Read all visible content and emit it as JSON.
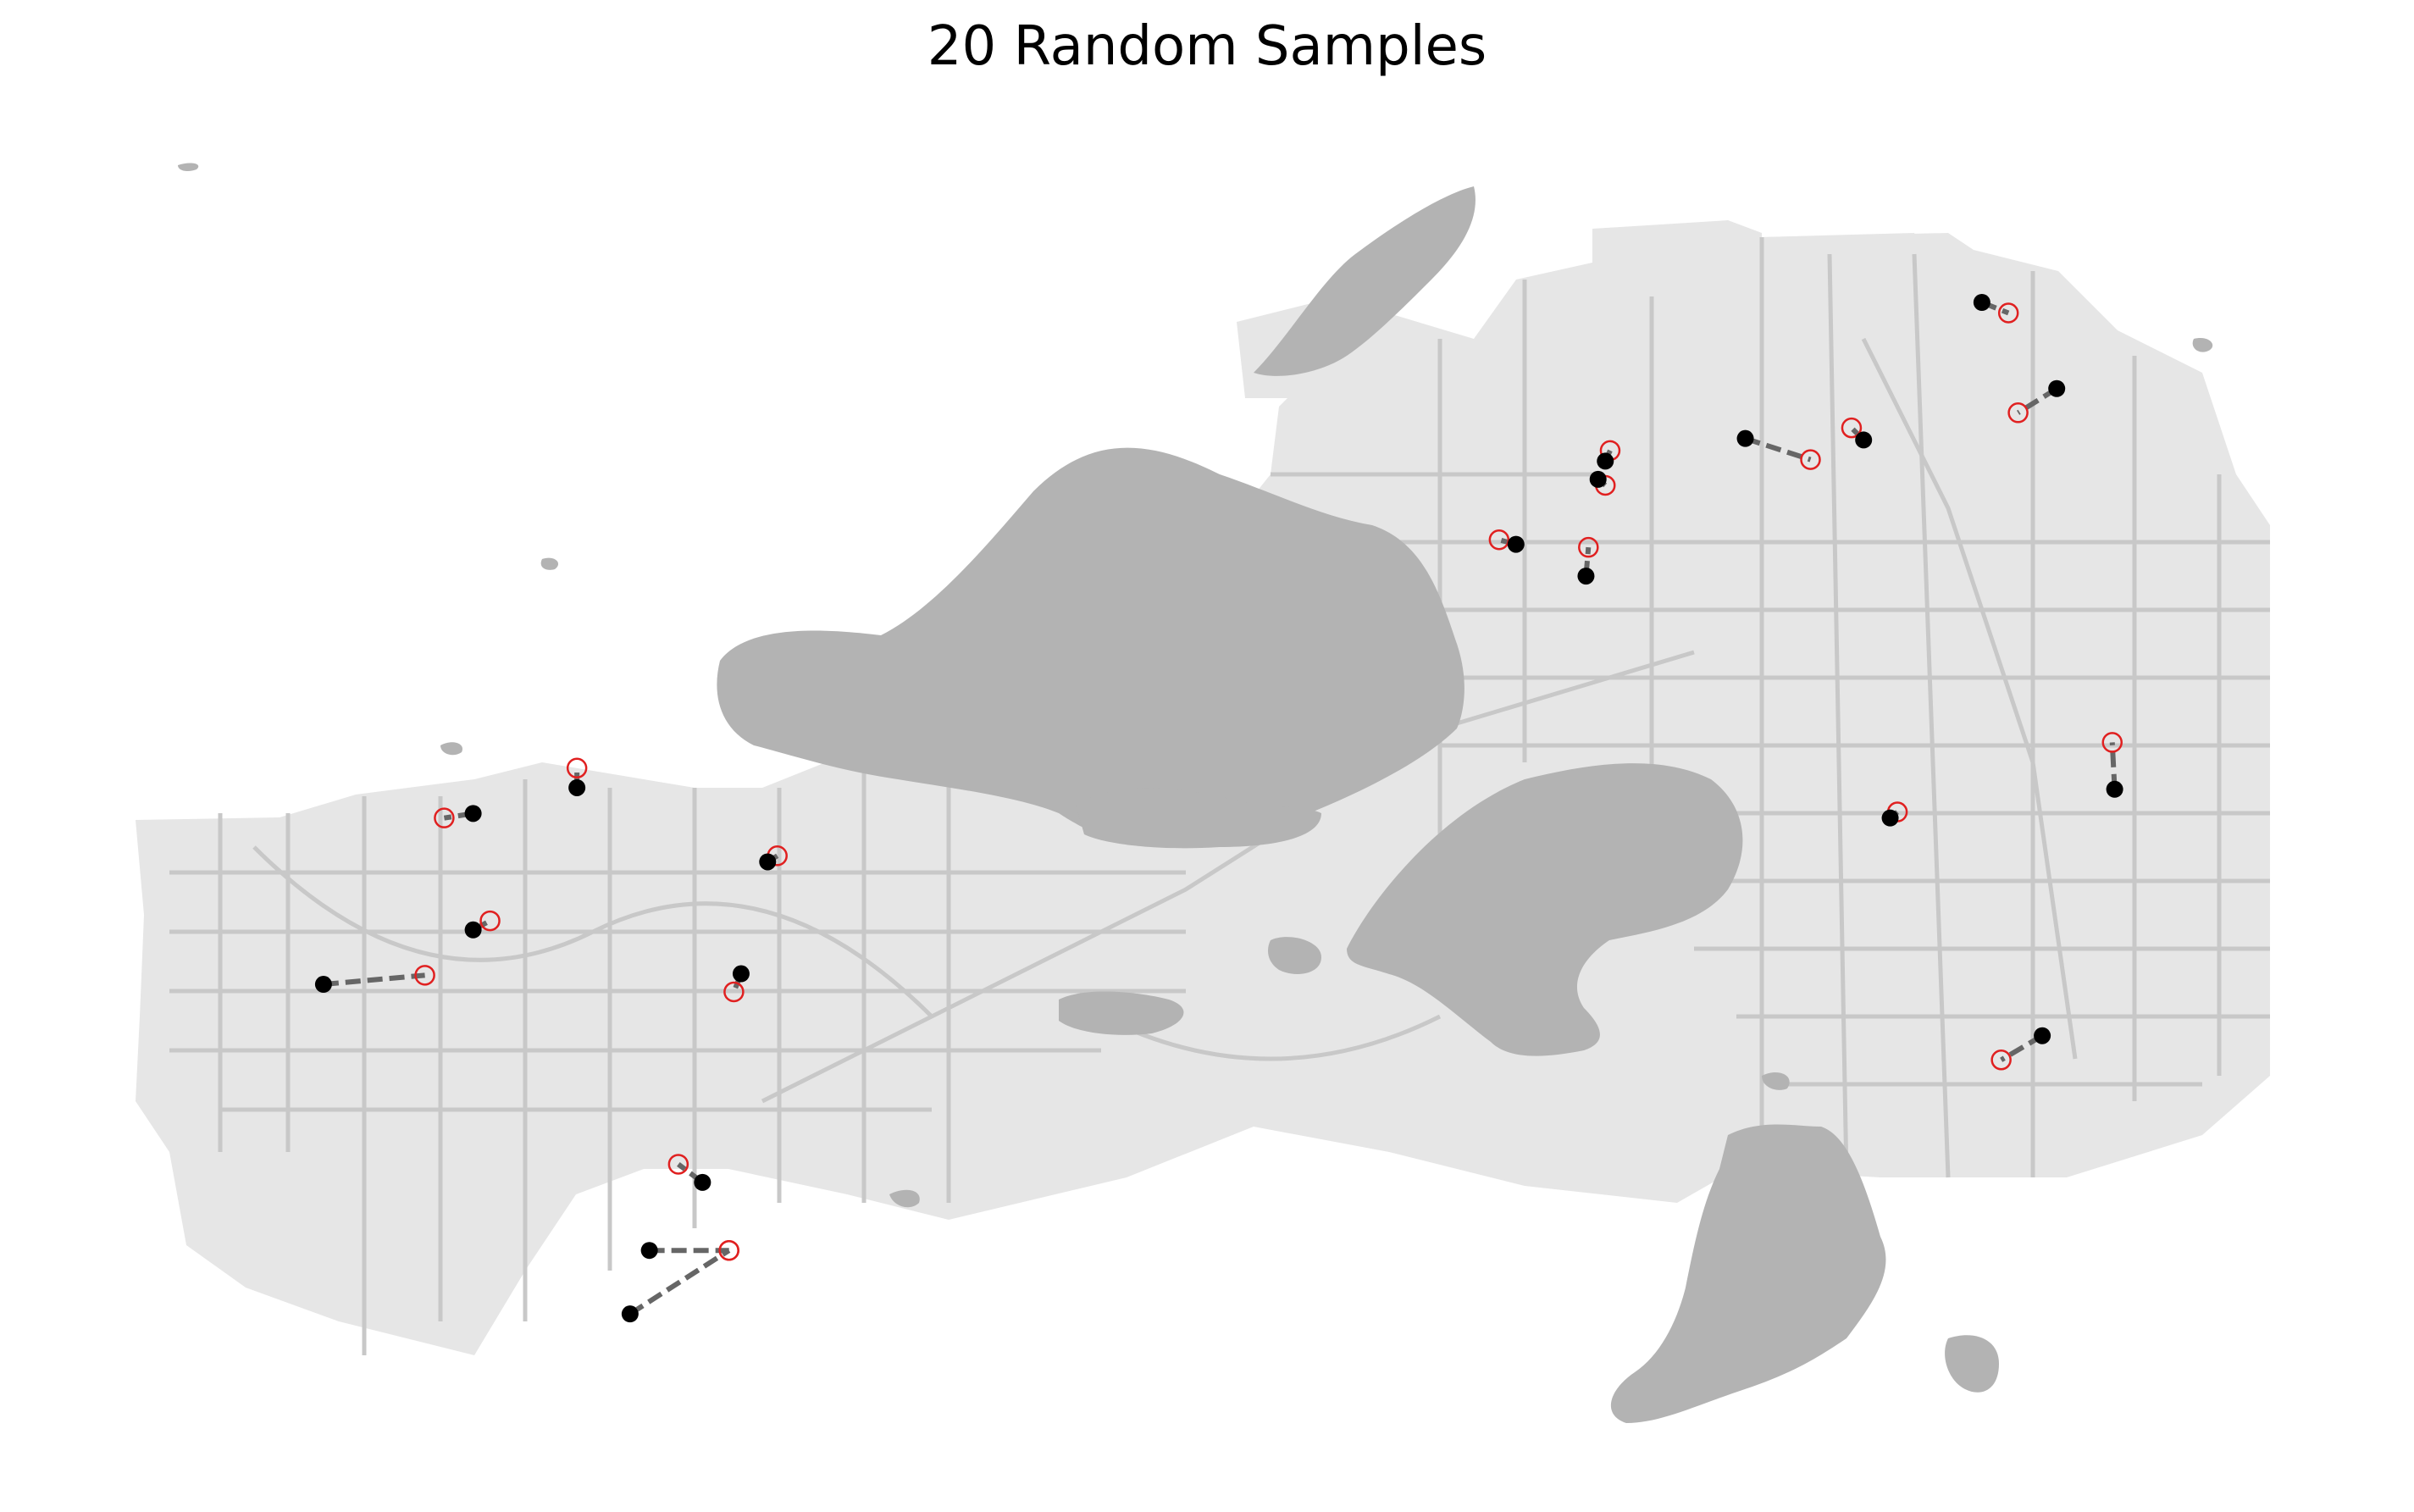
{
  "title": "20 Random Samples",
  "colors": {
    "background": "#ffffff",
    "urban_area": "#e6e6e6",
    "roads": "#c8c8c8",
    "water": "#b3b3b3",
    "true_point": "#000000",
    "predicted_point": "#e02020",
    "error_line": "#666666"
  },
  "samples": [
    {
      "id": 1,
      "point": [
        0.821,
        0.2
      ],
      "prediction": [
        0.832,
        0.207
      ]
    },
    {
      "id": 2,
      "point": [
        0.852,
        0.257
      ],
      "prediction": [
        0.836,
        0.273
      ]
    },
    {
      "id": 3,
      "point": [
        0.723,
        0.29
      ],
      "prediction": [
        0.75,
        0.304
      ]
    },
    {
      "id": 4,
      "point": [
        0.772,
        0.291
      ],
      "prediction": [
        0.767,
        0.283
      ]
    },
    {
      "id": 5,
      "point": [
        0.665,
        0.305
      ],
      "prediction": [
        0.667,
        0.298
      ]
    },
    {
      "id": 6,
      "point": [
        0.662,
        0.317
      ],
      "prediction": [
        0.665,
        0.321
      ]
    },
    {
      "id": 7,
      "point": [
        0.628,
        0.36
      ],
      "prediction": [
        0.621,
        0.357
      ]
    },
    {
      "id": 8,
      "point": [
        0.657,
        0.381
      ],
      "prediction": [
        0.658,
        0.362
      ]
    },
    {
      "id": 9,
      "point": [
        0.876,
        0.522
      ],
      "prediction": [
        0.875,
        0.491
      ]
    },
    {
      "id": 10,
      "point": [
        0.783,
        0.541
      ],
      "prediction": [
        0.786,
        0.537
      ]
    },
    {
      "id": 11,
      "point": [
        0.239,
        0.521
      ],
      "prediction": [
        0.239,
        0.508
      ]
    },
    {
      "id": 12,
      "point": [
        0.196,
        0.538
      ],
      "prediction": [
        0.184,
        0.541
      ]
    },
    {
      "id": 13,
      "point": [
        0.318,
        0.57
      ],
      "prediction": [
        0.322,
        0.566
      ]
    },
    {
      "id": 14,
      "point": [
        0.196,
        0.615
      ],
      "prediction": [
        0.203,
        0.609
      ]
    },
    {
      "id": 15,
      "point": [
        0.134,
        0.651
      ],
      "prediction": [
        0.176,
        0.645
      ]
    },
    {
      "id": 16,
      "point": [
        0.307,
        0.644
      ],
      "prediction": [
        0.304,
        0.656
      ]
    },
    {
      "id": 17,
      "point": [
        0.846,
        0.685
      ],
      "prediction": [
        0.829,
        0.701
      ]
    },
    {
      "id": 18,
      "point": [
        0.291,
        0.782
      ],
      "prediction": [
        0.281,
        0.77
      ]
    },
    {
      "id": 19,
      "point": [
        0.269,
        0.827
      ],
      "prediction": [
        0.302,
        0.827
      ]
    },
    {
      "id": 20,
      "point": [
        0.261,
        0.869
      ],
      "prediction": [
        0.302,
        0.827
      ]
    }
  ]
}
